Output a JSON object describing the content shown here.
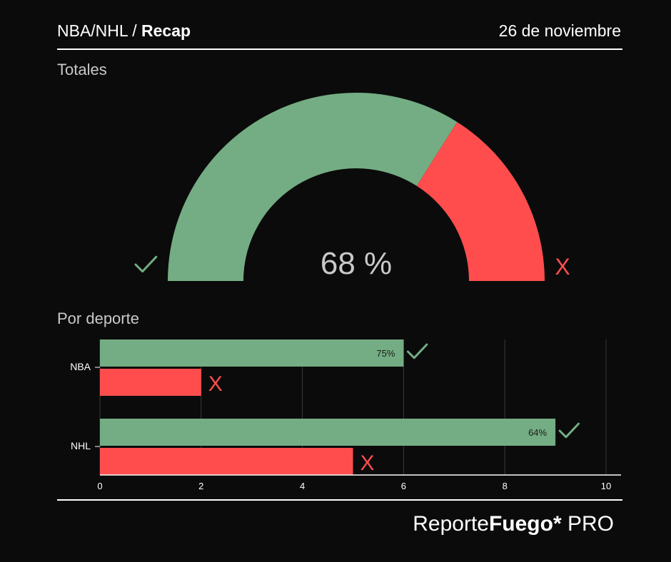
{
  "header": {
    "league": "NBA/NHL",
    "separator": " / ",
    "title": "Recap",
    "date": "26 de noviembre"
  },
  "sections": {
    "totals": "Totales",
    "by_sport": "Por deporte"
  },
  "symbols": {
    "win": "✓",
    "loss": "X"
  },
  "colors": {
    "win": "#74ad83",
    "loss": "#ff4d4d",
    "background": "#0b0b0b"
  },
  "footer": {
    "brand_a": "Reporte",
    "brand_b": "Fuego*",
    "brand_c": " PRO"
  },
  "chart_data": [
    {
      "type": "pie",
      "style": "half-donut gauge",
      "center_label": "68 %",
      "slices": [
        {
          "name": "✓",
          "value": 68,
          "color": "#74ad83"
        },
        {
          "name": "X",
          "value": 32,
          "color": "#ff4d4d"
        }
      ]
    },
    {
      "type": "bar",
      "orientation": "horizontal",
      "categories": [
        "NBA",
        "NHL"
      ],
      "series": [
        {
          "name": "✓",
          "values": [
            6,
            9
          ],
          "labels": [
            "75%",
            "64%"
          ],
          "color": "#74ad83"
        },
        {
          "name": "X",
          "values": [
            2,
            5
          ],
          "color": "#ff4d4d"
        }
      ],
      "xlim": [
        0,
        10
      ],
      "xticks": [
        0,
        2,
        4,
        6,
        8,
        10
      ],
      "grid": true
    }
  ]
}
